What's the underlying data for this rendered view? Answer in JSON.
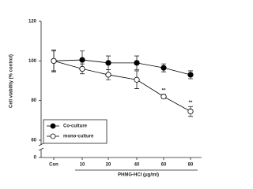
{
  "chart_data": {
    "type": "line",
    "xlabel": "PHMG-HCl (μg/ml)",
    "ylabel": "Cell viability (% control)",
    "categories": [
      "Con",
      "10",
      "20",
      "40",
      "60",
      "80"
    ],
    "series": [
      {
        "name": "Co-culture",
        "color": "#000000",
        "marker": "filled",
        "values": [
          100,
          100.5,
          99,
          99,
          96.5,
          93
        ],
        "errors": [
          5,
          4.5,
          3.5,
          3.5,
          2,
          2
        ]
      },
      {
        "name": "mono-culture",
        "color": "#000000",
        "marker": "open",
        "values": [
          100,
          96,
          93,
          90.5,
          82,
          74.5
        ],
        "errors": [
          5.5,
          2.5,
          2.5,
          4.5,
          1,
          2.5
        ]
      }
    ],
    "annotations": [
      {
        "text": "**",
        "x": "60",
        "series": 1
      },
      {
        "text": "**",
        "x": "80",
        "series": 1
      }
    ],
    "ylim": [
      60,
      120
    ],
    "yticks": [
      60,
      80,
      100,
      120
    ],
    "ybreak_tick": 0,
    "legend": "lower-left"
  }
}
